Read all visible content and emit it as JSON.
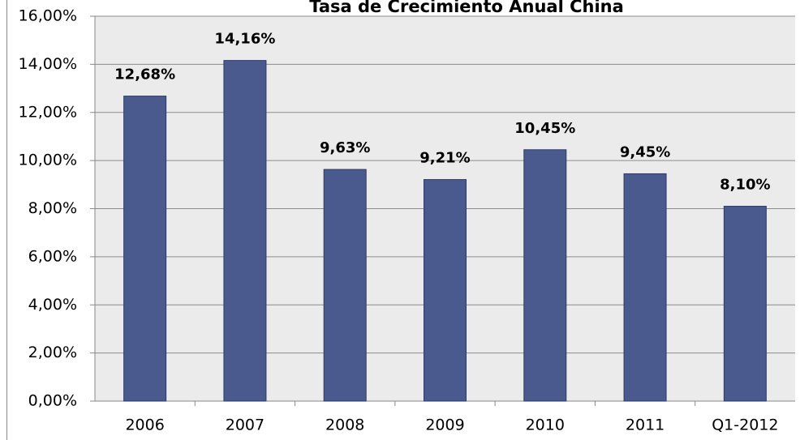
{
  "chart_data": {
    "type": "bar",
    "title": "Tasa de Crecimiento Anual China",
    "categories": [
      "2006",
      "2007",
      "2008",
      "2009",
      "2010",
      "2011",
      "Q1-2012"
    ],
    "values": [
      12.68,
      14.16,
      9.63,
      9.21,
      10.45,
      9.45,
      8.1
    ],
    "value_labels": [
      "12,68%",
      "14,16%",
      "9,63%",
      "9,21%",
      "10,45%",
      "9,45%",
      "8,10%"
    ],
    "color": "#4a5a8e",
    "ylim": [
      0,
      16
    ],
    "yticks": [
      {
        "value": 0,
        "label": "0,00%"
      },
      {
        "value": 2,
        "label": "2,00%"
      },
      {
        "value": 4,
        "label": "4,00%"
      },
      {
        "value": 6,
        "label": "6,00%"
      },
      {
        "value": 8,
        "label": "8,00%"
      },
      {
        "value": 10,
        "label": "10,00%"
      },
      {
        "value": 12,
        "label": "12,00%"
      },
      {
        "value": 14,
        "label": "14,00%"
      },
      {
        "value": 16,
        "label": "16,00%"
      }
    ],
    "grid": true
  }
}
